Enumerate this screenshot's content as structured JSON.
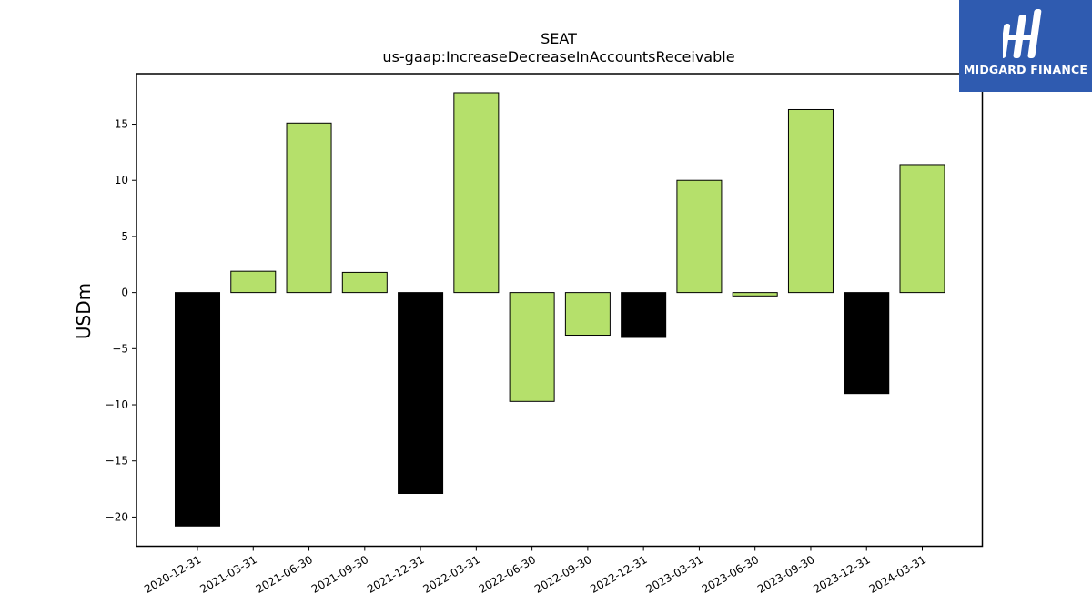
{
  "chart_data": {
    "type": "bar",
    "title": "SEAT",
    "subtitle": "us-gaap:IncreaseDecreaseInAccountsReceivable",
    "ylabel": "USDm",
    "xlabel": "",
    "ylim": [
      -22.6,
      19.5
    ],
    "yticks": [
      -20,
      -15,
      -10,
      -5,
      0,
      5,
      10,
      15
    ],
    "categories": [
      "2020-12-31",
      "2021-03-31",
      "2021-06-30",
      "2021-09-30",
      "2021-12-31",
      "2022-03-31",
      "2022-06-30",
      "2022-09-30",
      "2022-12-31",
      "2023-03-31",
      "2023-06-30",
      "2023-09-30",
      "2023-12-31",
      "2024-03-31"
    ],
    "values": [
      -20.8,
      1.9,
      15.1,
      1.8,
      -17.9,
      17.8,
      -9.7,
      -3.8,
      -4.0,
      10.0,
      -0.3,
      16.3,
      -9.0,
      11.4
    ],
    "bar_colors": [
      "#000000",
      "#b5e06b",
      "#b5e06b",
      "#b5e06b",
      "#000000",
      "#b5e06b",
      "#b5e06b",
      "#b5e06b",
      "#000000",
      "#b5e06b",
      "#b5e06b",
      "#b5e06b",
      "#000000",
      "#b5e06b"
    ],
    "grid": false,
    "legend": "none"
  },
  "logo": {
    "text": "MIDGARD FINANCE",
    "icon": "midgard-logo-icon",
    "background": "#2f5bb0"
  }
}
